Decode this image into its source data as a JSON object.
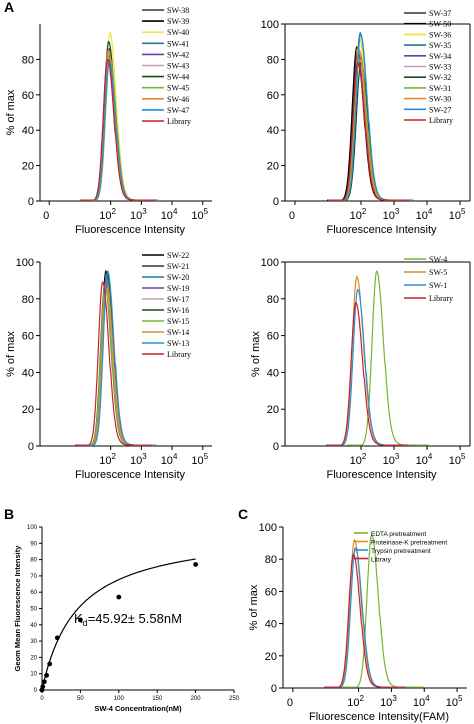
{
  "labels": {
    "A": "A",
    "B": "B",
    "C": "C"
  },
  "chart_data": [
    {
      "id": "p1",
      "type": "line",
      "xscale": "log",
      "xlim": [
        0.5,
        200000
      ],
      "ylim": [
        0,
        100
      ],
      "xticks": [
        1,
        100,
        1000,
        10000,
        100000
      ],
      "xticklabels": {
        "base": [
          "0",
          "10",
          "10",
          "10",
          "10"
        ],
        "exp": [
          "",
          "2",
          "3",
          "4",
          "5"
        ]
      },
      "yticks": [
        0,
        20,
        40,
        60,
        80
      ],
      "xlabel": "Fluorescence Intensity",
      "ylabel": "% of max",
      "series": [
        {
          "name": "SW-38",
          "color": "#333333",
          "peak_x": 90,
          "peak_y": 86
        },
        {
          "name": "SW-39",
          "color": "#000000",
          "peak_x": 85,
          "peak_y": 83
        },
        {
          "name": "SW-40",
          "color": "#f2e33a",
          "peak_x": 95,
          "peak_y": 95
        },
        {
          "name": "SW-41",
          "color": "#1e7f8a",
          "peak_x": 88,
          "peak_y": 80
        },
        {
          "name": "SW-42",
          "color": "#6b3fa0",
          "peak_x": 80,
          "peak_y": 82
        },
        {
          "name": "SW-43",
          "color": "#c79bb0",
          "peak_x": 92,
          "peak_y": 84
        },
        {
          "name": "SW-44",
          "color": "#1a4a1a",
          "peak_x": 86,
          "peak_y": 90
        },
        {
          "name": "SW-45",
          "color": "#7ab531",
          "peak_x": 94,
          "peak_y": 81
        },
        {
          "name": "SW-46",
          "color": "#e08a2a",
          "peak_x": 84,
          "peak_y": 85
        },
        {
          "name": "SW-47",
          "color": "#2a8fd6",
          "peak_x": 90,
          "peak_y": 79
        },
        {
          "name": "Library",
          "color": "#c2232b",
          "peak_x": 80,
          "peak_y": 80
        }
      ]
    },
    {
      "id": "p2",
      "type": "line",
      "xscale": "log",
      "xlim": [
        0.5,
        200000
      ],
      "ylim": [
        0,
        100
      ],
      "xticks": [
        1,
        100,
        1000,
        10000,
        100000
      ],
      "xticklabels": {
        "base": [
          "0",
          "10",
          "10",
          "10",
          "10"
        ],
        "exp": [
          "",
          "2",
          "3",
          "4",
          "5"
        ]
      },
      "yticks": [
        0,
        20,
        40,
        60,
        80,
        100
      ],
      "xlabel": "Fluorescence Intensity",
      "ylabel": "",
      "series": [
        {
          "name": "SW-37",
          "color": "#333333",
          "peak_x": 80,
          "peak_y": 85
        },
        {
          "name": "SW-50",
          "color": "#000000",
          "peak_x": 75,
          "peak_y": 87
        },
        {
          "name": "SW-36",
          "color": "#f2e33a",
          "peak_x": 90,
          "peak_y": 92
        },
        {
          "name": "SW-35",
          "color": "#1e7f8a",
          "peak_x": 95,
          "peak_y": 95
        },
        {
          "name": "SW-34",
          "color": "#6b3fa0",
          "peak_x": 82,
          "peak_y": 83
        },
        {
          "name": "SW-33",
          "color": "#c79bb0",
          "peak_x": 88,
          "peak_y": 80
        },
        {
          "name": "SW-32",
          "color": "#1a4a1a",
          "peak_x": 100,
          "peak_y": 78
        },
        {
          "name": "SW-31",
          "color": "#7ab531",
          "peak_x": 92,
          "peak_y": 84
        },
        {
          "name": "SW-30",
          "color": "#e08a2a",
          "peak_x": 86,
          "peak_y": 86
        },
        {
          "name": "SW-27",
          "color": "#2a8fd6",
          "peak_x": 98,
          "peak_y": 94
        },
        {
          "name": "Library",
          "color": "#c2232b",
          "peak_x": 80,
          "peak_y": 78
        }
      ]
    },
    {
      "id": "p3",
      "type": "line",
      "xscale": "log",
      "xlim": [
        0.5,
        200000
      ],
      "ylim": [
        0,
        100
      ],
      "xticks": [
        100,
        1000,
        10000,
        100000
      ],
      "xticklabels": {
        "base": [
          "10",
          "10",
          "10",
          "10"
        ],
        "exp": [
          "2",
          "3",
          "4",
          "5"
        ]
      },
      "yticks": [
        0,
        20,
        40,
        60,
        80,
        100
      ],
      "xlabel": "Fluorescence Intensity",
      "ylabel": "% of max",
      "series": [
        {
          "name": "SW-22",
          "color": "#000000",
          "peak_x": 70,
          "peak_y": 95
        },
        {
          "name": "SW-21",
          "color": "#333333",
          "peak_x": 65,
          "peak_y": 88
        },
        {
          "name": "SW-20",
          "color": "#1e7f8a",
          "peak_x": 75,
          "peak_y": 92
        },
        {
          "name": "SW-19",
          "color": "#6b3fa0",
          "peak_x": 68,
          "peak_y": 90
        },
        {
          "name": "SW-17",
          "color": "#c79bb0",
          "peak_x": 72,
          "peak_y": 86
        },
        {
          "name": "SW-16",
          "color": "#1a4a1a",
          "peak_x": 78,
          "peak_y": 94
        },
        {
          "name": "SW-15",
          "color": "#7ab531",
          "peak_x": 66,
          "peak_y": 87
        },
        {
          "name": "SW-14",
          "color": "#e08a2a",
          "peak_x": 74,
          "peak_y": 89
        },
        {
          "name": "SW-13",
          "color": "#2a8fd6",
          "peak_x": 80,
          "peak_y": 95
        },
        {
          "name": "Library",
          "color": "#c2232b",
          "peak_x": 55,
          "peak_y": 89
        }
      ]
    },
    {
      "id": "p4",
      "type": "line",
      "xscale": "log",
      "xlim": [
        0.5,
        200000
      ],
      "ylim": [
        0,
        100
      ],
      "xticks": [
        100,
        1000,
        10000,
        100000
      ],
      "xticklabels": {
        "base": [
          "10",
          "10",
          "10",
          "10"
        ],
        "exp": [
          "2",
          "3",
          "4",
          "5"
        ]
      },
      "yticks": [
        0,
        20,
        40,
        60,
        80,
        100
      ],
      "xlabel": "Fluorescence Intensity",
      "ylabel": "% of max",
      "series": [
        {
          "name": "SW-4",
          "color": "#7ab531",
          "peak_x": 300,
          "peak_y": 95
        },
        {
          "name": "SW-5",
          "color": "#e08a2a",
          "peak_x": 75,
          "peak_y": 92
        },
        {
          "name": "SW-1",
          "color": "#2a8fd6",
          "peak_x": 80,
          "peak_y": 85
        },
        {
          "name": "Library",
          "color": "#c2232b",
          "peak_x": 70,
          "peak_y": 78
        }
      ]
    },
    {
      "id": "pB",
      "type": "scatter",
      "xlim": [
        0,
        250
      ],
      "ylim": [
        0,
        100
      ],
      "xticks": [
        0,
        50,
        100,
        150,
        200,
        250
      ],
      "yticks": [
        0,
        10,
        20,
        30,
        40,
        50,
        60,
        70,
        80,
        90,
        100
      ],
      "xlabel": "SW-4 Concentration(nM)",
      "ylabel": "Geom Mean Fluorescence Intensity",
      "x": [
        0,
        1,
        3,
        6,
        10,
        20,
        50,
        100,
        200
      ],
      "y": [
        0,
        2,
        5,
        9,
        16,
        32,
        43,
        57,
        77
      ],
      "fit": {
        "Bmax": 98.8,
        "Kd": 45.92
      },
      "annotation": {
        "k": "K",
        "sub": "d",
        "text": "=45.92± 5.58nM"
      }
    },
    {
      "id": "pC",
      "type": "line",
      "xscale": "log",
      "xlim": [
        0.5,
        200000
      ],
      "ylim": [
        0,
        100
      ],
      "xticks": [
        1,
        100,
        1000,
        10000,
        100000
      ],
      "xticklabels": {
        "base": [
          "0",
          "10",
          "10",
          "10",
          "10"
        ],
        "exp": [
          "",
          "2",
          "3",
          "4",
          "5"
        ]
      },
      "yticks": [
        0,
        20,
        40,
        60,
        80,
        100
      ],
      "xlabel": "Fluorescence Intensity(FAM)",
      "ylabel": "% of max",
      "series": [
        {
          "name": "EDTA pretreatment",
          "color": "#7ab531",
          "peak_x": 250,
          "peak_y": 95
        },
        {
          "name": "Proteinase-K pretreatment",
          "color": "#e08a2a",
          "peak_x": 75,
          "peak_y": 92
        },
        {
          "name": "Trypsin pretreatment",
          "color": "#2a8fd6",
          "peak_x": 80,
          "peak_y": 87
        },
        {
          "name": "Library",
          "color": "#c2232b",
          "peak_x": 70,
          "peak_y": 83
        }
      ]
    }
  ]
}
